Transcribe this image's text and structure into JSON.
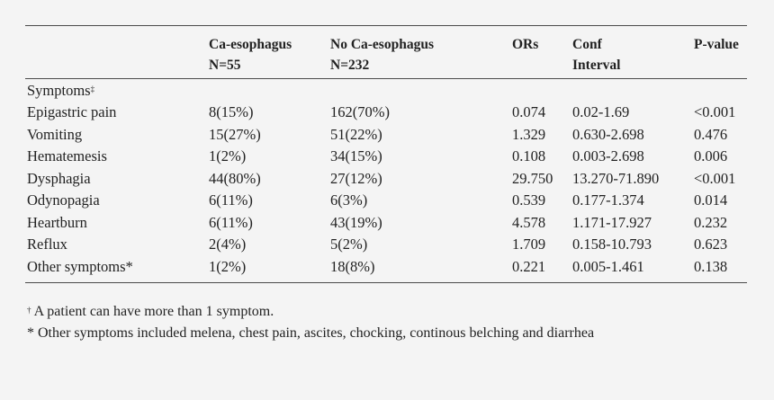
{
  "table": {
    "headers": {
      "col1_line1": "Ca-esophagus",
      "col1_line2": "N=55",
      "col2_line1": "No Ca-esophagus",
      "col2_line2": "N=232",
      "col3": "ORs",
      "col4_line1": "Conf",
      "col4_line2": "Interval",
      "col5": "P-value"
    },
    "section_label": "Symptoms",
    "section_mark": "‡",
    "rows": [
      {
        "symptom": "Epigastric pain",
        "ca": "8(15%)",
        "no_ca": "162(70%)",
        "or": "0.074",
        "ci": "0.02-1.69",
        "p": "<0.001"
      },
      {
        "symptom": "Vomiting",
        "ca": "15(27%)",
        "no_ca": "51(22%)",
        "or": "1.329",
        "ci": "0.630-2.698",
        "p": "0.476"
      },
      {
        "symptom": "Hematemesis",
        "ca": "1(2%)",
        "no_ca": "34(15%)",
        "or": "0.108",
        "ci": "0.003-2.698",
        "p": "0.006"
      },
      {
        "symptom": "Dysphagia",
        "ca": "44(80%)",
        "no_ca": "27(12%)",
        "or": "29.750",
        "ci": "13.270-71.890",
        "p": "<0.001"
      },
      {
        "symptom": "Odynopagia",
        "ca": "6(11%)",
        "no_ca": "6(3%)",
        "or": "0.539",
        "ci": "0.177-1.374",
        "p": "0.014"
      },
      {
        "symptom": "Heartburn",
        "ca": "6(11%)",
        "no_ca": "43(19%)",
        "or": "4.578",
        "ci": "1.171-17.927",
        "p": "0.232"
      },
      {
        "symptom": "Reflux",
        "ca": "2(4%)",
        "no_ca": "5(2%)",
        "or": "1.709",
        "ci": "0.158-10.793",
        "p": "0.623"
      },
      {
        "symptom": "Other symptoms*",
        "ca": "1(2%)",
        "no_ca": "18(8%)",
        "or": "0.221",
        "ci": "0.005-1.461",
        "p": "0.138"
      }
    ]
  },
  "footnotes": {
    "note1_mark": "†",
    "note1_text": " A patient can have more than 1 symptom.",
    "note2_text": "* Other symptoms included melena, chest pain, ascites, chocking, continous belching and diarrhea"
  }
}
